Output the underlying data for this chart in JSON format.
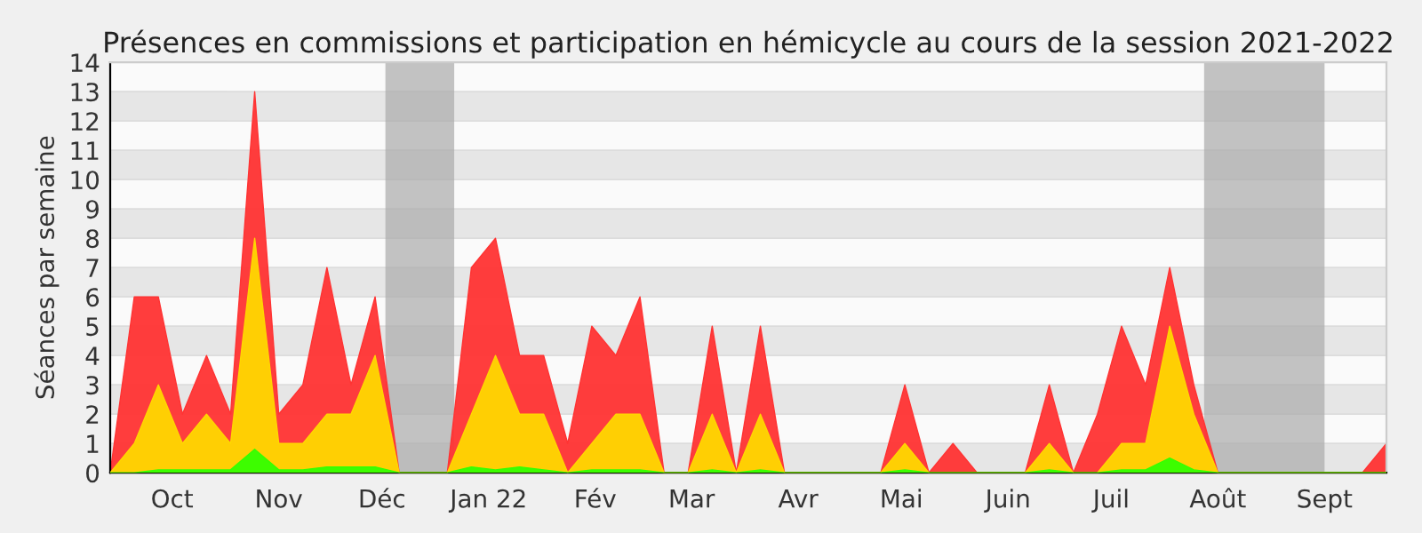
{
  "chart_data": {
    "type": "area",
    "title": "Présences en commissions et participation en hémicycle au cours de la session 2021-2022",
    "ylabel": "Séances par semaine",
    "x": [
      "2021-09-27",
      "2021-10-04",
      "2021-10-11",
      "2021-10-18",
      "2021-10-25",
      "2021-11-01",
      "2021-11-08",
      "2021-11-15",
      "2021-11-22",
      "2021-11-29",
      "2021-12-06",
      "2021-12-13",
      "2021-12-20",
      "2021-12-27",
      "2022-01-03",
      "2022-01-10",
      "2022-01-17",
      "2022-01-24",
      "2022-01-31",
      "2022-02-07",
      "2022-02-14",
      "2022-02-21",
      "2022-02-28",
      "2022-03-07",
      "2022-03-14",
      "2022-03-21",
      "2022-03-28",
      "2022-04-04",
      "2022-04-11",
      "2022-04-18",
      "2022-04-25",
      "2022-05-02",
      "2022-05-09",
      "2022-05-16",
      "2022-05-23",
      "2022-05-30",
      "2022-06-06",
      "2022-06-13",
      "2022-06-20",
      "2022-06-27",
      "2022-07-04",
      "2022-07-11",
      "2022-07-18",
      "2022-07-25",
      "2022-08-01",
      "2022-08-08",
      "2022-08-15",
      "2022-08-22",
      "2022-08-29",
      "2022-09-05",
      "2022-09-12",
      "2022-09-19",
      "2022-09-26",
      "2022-10-03"
    ],
    "series": [
      {
        "color": "#ff3333",
        "values": [
          0,
          6,
          6,
          2,
          4,
          2,
          13,
          2,
          3,
          7,
          3,
          6,
          0,
          0,
          0,
          7,
          8,
          4,
          4,
          1,
          5,
          4,
          6,
          0,
          0,
          5,
          0,
          5,
          0,
          0,
          0,
          0,
          0,
          3,
          0,
          1,
          0,
          0,
          0,
          3,
          0,
          2,
          5,
          3,
          7,
          3,
          0,
          0,
          0,
          0,
          0,
          0,
          0,
          1
        ]
      },
      {
        "color": "#ffd700",
        "values": [
          0,
          1,
          3,
          1,
          2,
          1,
          8,
          1,
          1,
          2,
          2,
          4,
          0,
          0,
          0,
          2,
          4,
          2,
          2,
          0,
          1,
          2,
          2,
          0,
          0,
          2,
          0,
          2,
          0,
          0,
          0,
          0,
          0,
          1,
          0,
          0,
          0,
          0,
          0,
          1,
          0,
          0,
          1,
          1,
          5,
          2,
          0,
          0,
          0,
          0,
          0,
          0,
          0,
          0
        ]
      },
      {
        "color": "#33ff00",
        "values": [
          0,
          0,
          0.1,
          0.1,
          0.1,
          0.1,
          0.8,
          0.1,
          0.1,
          0.2,
          0.2,
          0.2,
          0,
          0,
          0,
          0.2,
          0.1,
          0.2,
          0.1,
          0,
          0.1,
          0.1,
          0.1,
          0,
          0,
          0.1,
          0,
          0.1,
          0,
          0,
          0,
          0,
          0,
          0.1,
          0,
          0,
          0,
          0,
          0,
          0.1,
          0,
          0,
          0.1,
          0.1,
          0.5,
          0.1,
          0,
          0,
          0,
          0,
          0,
          0,
          0,
          0
        ]
      }
    ],
    "xlim": [
      "2021-09-27",
      "2022-10-03"
    ],
    "xticks": [
      {
        "value": "2021-10-15",
        "label": "Oct"
      },
      {
        "value": "2021-11-15",
        "label": "Nov"
      },
      {
        "value": "2021-12-15",
        "label": "Déc"
      },
      {
        "value": "2022-01-15",
        "label": "Jan 22"
      },
      {
        "value": "2022-02-15",
        "label": "Fév"
      },
      {
        "value": "2022-03-15",
        "label": "Mar"
      },
      {
        "value": "2022-04-15",
        "label": "Avr"
      },
      {
        "value": "2022-05-15",
        "label": "Mai"
      },
      {
        "value": "2022-06-15",
        "label": "Juin"
      },
      {
        "value": "2022-07-15",
        "label": "Juil"
      },
      {
        "value": "2022-08-15",
        "label": "Août"
      },
      {
        "value": "2022-09-15",
        "label": "Sept"
      }
    ],
    "ylim": [
      0,
      14
    ],
    "yticks": [
      0,
      1,
      2,
      3,
      4,
      5,
      6,
      7,
      8,
      9,
      10,
      11,
      12,
      13,
      14
    ],
    "grid": "y",
    "bands": [
      {
        "axis": "x",
        "from": "2021-12-16",
        "to": "2022-01-05",
        "color": "#aaaaaa"
      },
      {
        "axis": "x",
        "from": "2022-08-11",
        "to": "2022-09-15",
        "color": "#aaaaaa"
      }
    ]
  }
}
